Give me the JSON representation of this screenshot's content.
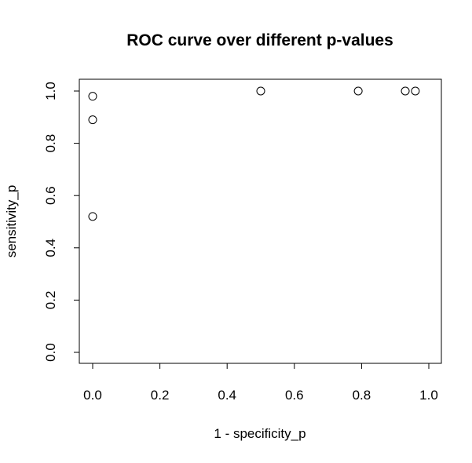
{
  "chart_data": {
    "type": "scatter",
    "title": "ROC curve over different p-values",
    "xlabel": "1 - specificity_p",
    "ylabel": "sensitivity_p",
    "xlim": [
      0.0,
      1.0
    ],
    "ylim": [
      0.0,
      1.0
    ],
    "x_ticks": [
      0.0,
      0.2,
      0.4,
      0.6,
      0.8,
      1.0
    ],
    "x_tick_labels": [
      "0.0",
      "0.2",
      "0.4",
      "0.6",
      "0.8",
      "1.0"
    ],
    "y_ticks": [
      0.0,
      0.2,
      0.4,
      0.6,
      0.8,
      1.0
    ],
    "y_tick_labels": [
      "0.0",
      "0.2",
      "0.4",
      "0.6",
      "0.8",
      "1.0"
    ],
    "grid": false,
    "marker": "open-circle",
    "marker_color": "#000000",
    "points": [
      {
        "x": 0.0,
        "y": 0.98
      },
      {
        "x": 0.0,
        "y": 0.89
      },
      {
        "x": 0.0,
        "y": 0.52
      },
      {
        "x": 0.5,
        "y": 1.0
      },
      {
        "x": 0.79,
        "y": 1.0
      },
      {
        "x": 0.93,
        "y": 1.0
      },
      {
        "x": 0.96,
        "y": 1.0
      }
    ]
  }
}
